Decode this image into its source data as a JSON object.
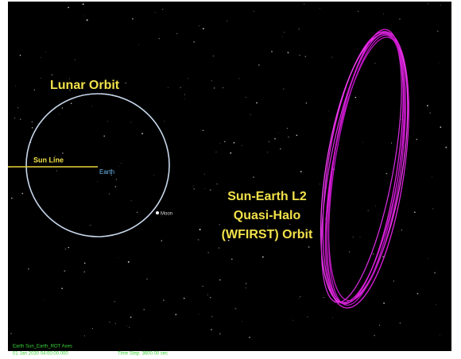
{
  "labels": {
    "lunar_orbit": "Lunar Orbit",
    "sun_line": "Sun Line",
    "earth": "Earth",
    "moon": "Moon",
    "halo_orbit": [
      "Sun-Earth L2",
      "Quasi-Halo",
      "(WFIRST) Orbit"
    ]
  },
  "status": {
    "axes": "Earth Sun_Earth_ROT Axes",
    "epoch": "01 Jan 2030 04:00:00.000",
    "time_step": "Time Step: 3600.00 sec"
  }
}
